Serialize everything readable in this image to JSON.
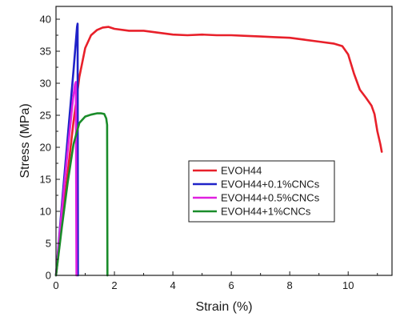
{
  "chart_data": {
    "type": "line",
    "xlabel": "Strain (%)",
    "ylabel": "Stress (MPa)",
    "xlim": [
      0,
      11.5
    ],
    "ylim": [
      0,
      42
    ],
    "xticks": [
      0,
      2,
      4,
      6,
      8,
      10
    ],
    "yticks": [
      0,
      5,
      10,
      15,
      20,
      25,
      30,
      35,
      40
    ],
    "legend_position": "center-right",
    "grid": false,
    "series": [
      {
        "name": "EVOH44",
        "color": "#e8202a",
        "x": [
          0,
          0.2,
          0.4,
          0.6,
          0.8,
          1.0,
          1.2,
          1.4,
          1.6,
          1.8,
          2.0,
          2.5,
          3.0,
          3.5,
          4.0,
          4.5,
          5.0,
          5.5,
          6.0,
          6.5,
          7.0,
          7.5,
          8.0,
          8.5,
          9.0,
          9.5,
          9.8,
          10.0,
          10.2,
          10.4,
          10.6,
          10.8,
          10.9,
          11.0,
          11.1,
          11.15
        ],
        "y": [
          0,
          8,
          16,
          24,
          31,
          35.5,
          37.5,
          38.3,
          38.7,
          38.8,
          38.5,
          38.2,
          38.2,
          37.9,
          37.6,
          37.5,
          37.6,
          37.5,
          37.5,
          37.4,
          37.3,
          37.2,
          37.1,
          36.8,
          36.5,
          36.2,
          35.8,
          34.5,
          31.5,
          29,
          27.8,
          26.5,
          25.2,
          22.5,
          20.5,
          19.3
        ]
      },
      {
        "name": "EVOH44+0.1%CNCs",
        "color": "#1f22c8",
        "x": [
          0,
          0.2,
          0.4,
          0.6,
          0.72,
          0.74,
          0.75
        ],
        "y": [
          0,
          11,
          21.5,
          32,
          38.8,
          39.3,
          0
        ]
      },
      {
        "name": "EVOH44+0.5%CNCs",
        "color": "#e020e0",
        "x": [
          0,
          0.2,
          0.4,
          0.58,
          0.65,
          0.68,
          0.7
        ],
        "y": [
          0,
          10.2,
          19.5,
          27.5,
          29.8,
          30.2,
          0
        ]
      },
      {
        "name": "EVOH44+1%CNCs",
        "color": "#1a8c2a",
        "x": [
          0,
          0.2,
          0.4,
          0.6,
          0.8,
          1.0,
          1.2,
          1.4,
          1.55,
          1.65,
          1.72,
          1.75,
          1.76
        ],
        "y": [
          0,
          7.5,
          14.5,
          20.5,
          23.8,
          24.8,
          25.1,
          25.3,
          25.3,
          25.2,
          24.5,
          23.5,
          0
        ]
      }
    ]
  }
}
